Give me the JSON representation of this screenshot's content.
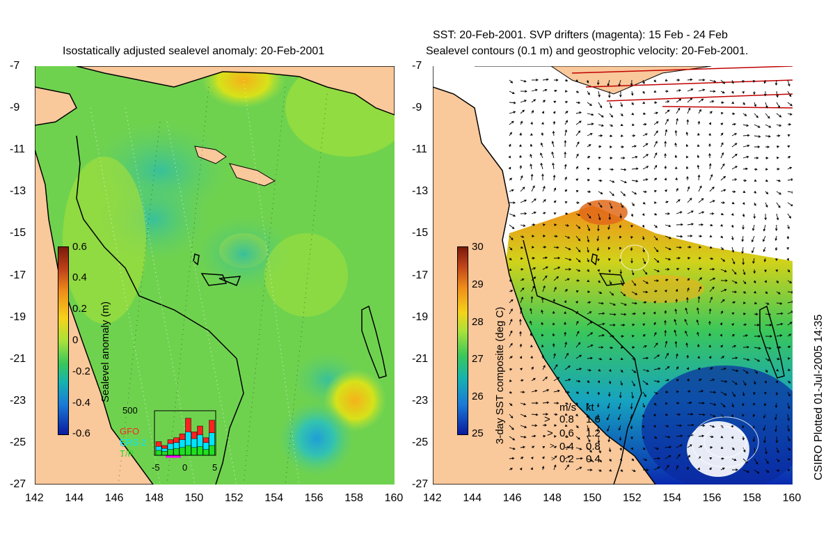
{
  "colors": {
    "land": "#f9c89b",
    "ocean_base": "#7fd44a",
    "coast": "#000000",
    "drifter_color": "magenta"
  },
  "left_panel": {
    "title": "Isostatically adjusted sealevel anomaly: 20-Feb-2001",
    "colorbar": {
      "label": "Sealevel anomaly (m)",
      "ticks": [
        "0.6",
        "0.4",
        "0.2",
        "0",
        "-0.2",
        "-0.4",
        "-0.6"
      ]
    },
    "inset": {
      "ytick": "500",
      "legend": [
        "GFO",
        "ERS-2",
        "T/P"
      ],
      "legend_colors": [
        "#ff2020",
        "#00e5ff",
        "#20e020"
      ],
      "xticks": [
        "-5",
        "0",
        "5"
      ],
      "bars_total": [
        1.4,
        1.0,
        1.6,
        1.8,
        2.2,
        3.8,
        2.4,
        3.0,
        1.8,
        3.6
      ],
      "bars_ers": [
        0.9,
        0.7,
        1.2,
        1.3,
        1.6,
        2.4,
        1.7,
        2.1,
        1.3,
        2.3
      ],
      "bars_tp": [
        0.5,
        0.4,
        0.6,
        0.7,
        0.8,
        1.0,
        0.8,
        0.9,
        0.6,
        1.0
      ]
    }
  },
  "right_panel": {
    "title_line1": "SST: 20-Feb-2001. SVP drifters (magenta): 15 Feb - 24 Feb",
    "title_line2": "Sealevel contours (0.1 m) and geostrophic velocity: 20-Feb-2001.",
    "colorbar": {
      "label": "3-day SST composite (deg C)",
      "ticks": [
        "30",
        "29",
        "28",
        "27",
        "26",
        "25"
      ]
    },
    "velocity_legend": {
      "header_ms": "m/s",
      "header_kt": "kt",
      "rows": [
        {
          "ms": "0.8",
          "kt": "1.6"
        },
        {
          "ms": "0.6",
          "kt": "1.2"
        },
        {
          "ms": "0.4",
          "kt": "0.8"
        },
        {
          "ms": "0.2",
          "kt": "0.4"
        }
      ]
    }
  },
  "axes": {
    "y_ticks": [
      "-7",
      "-9",
      "-11",
      "-13",
      "-15",
      "-17",
      "-19",
      "-21",
      "-23",
      "-25",
      "-27"
    ],
    "x_ticks": [
      "142",
      "144",
      "146",
      "148",
      "150",
      "152",
      "154",
      "156",
      "158",
      "160"
    ]
  },
  "credit": "CSIRO Plotted 01-Jul-2005 14:35"
}
